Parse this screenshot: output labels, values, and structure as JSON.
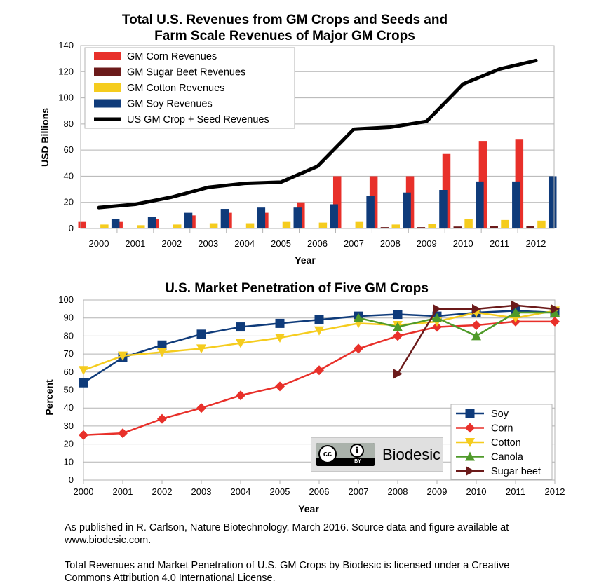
{
  "chart_data": [
    {
      "type": "bar",
      "title": "Total U.S. Revenues from GM Crops and Seeds and",
      "subtitle": "Farm Scale Revenues of Major GM Crops",
      "xlabel": "Year",
      "ylabel": "USD Billions",
      "ylim": [
        0,
        140
      ],
      "yticks": [
        "0",
        "20",
        "40",
        "60",
        "80",
        "100",
        "120",
        "140"
      ],
      "grid": true,
      "legend_position": "top-left",
      "categories": [
        "2000",
        "2001",
        "2002",
        "2003",
        "2004",
        "2005",
        "2006",
        "2007",
        "2008",
        "2009",
        "2010",
        "2011",
        "2012"
      ],
      "series": [
        {
          "name": "GM Corn Revenues",
          "kind": "bar",
          "color": "#e8302a",
          "values": [
            5,
            5,
            7,
            10,
            12,
            12,
            20,
            40,
            40,
            40,
            57,
            67,
            68
          ]
        },
        {
          "name": "GM Sugar Beet Revenues",
          "kind": "bar",
          "color": "#6b1a1a",
          "values": [
            0,
            0,
            0,
            0,
            0,
            0,
            0,
            0,
            1,
            1,
            1.5,
            2,
            2
          ]
        },
        {
          "name": "GM Cotton Revenues",
          "kind": "bar",
          "color": "#f5cc1e",
          "values": [
            3,
            2.5,
            3,
            4,
            4,
            5,
            4.5,
            5,
            3,
            3.5,
            7,
            6.5,
            6
          ]
        },
        {
          "name": "GM Soy Revenues",
          "kind": "bar",
          "color": "#0f3b7a",
          "values": [
            7,
            9,
            12,
            15,
            16,
            16,
            18.5,
            25,
            27.5,
            29.5,
            36,
            36,
            40
          ]
        },
        {
          "name": "US GM Crop + Seed Revenues",
          "kind": "line",
          "color": "#000000",
          "values": [
            16,
            18.5,
            24,
            31.5,
            34.5,
            35.5,
            47.5,
            76,
            77.5,
            82,
            110.5,
            122,
            128.5
          ]
        }
      ]
    },
    {
      "type": "line",
      "title": "U.S. Market Penetration of Five GM Crops",
      "xlabel": "Year",
      "ylabel": "Percent",
      "ylim": [
        0,
        100
      ],
      "yticks": [
        "0",
        "10",
        "20",
        "30",
        "40",
        "50",
        "60",
        "70",
        "80",
        "90",
        "100"
      ],
      "grid": true,
      "legend_position": "bottom-right",
      "x": [
        "2000",
        "2001",
        "2002",
        "2003",
        "2004",
        "2005",
        "2006",
        "2007",
        "2008",
        "2009",
        "2010",
        "2011",
        "2012"
      ],
      "series": [
        {
          "name": "Soy",
          "color": "#0f3b7a",
          "marker": "square",
          "values": [
            54,
            68,
            75,
            81,
            85,
            87,
            89,
            91,
            92,
            91,
            93,
            94,
            93
          ]
        },
        {
          "name": "Corn",
          "color": "#e8302a",
          "marker": "diamond",
          "values": [
            25,
            26,
            34,
            40,
            47,
            52,
            61,
            73,
            80,
            85,
            86,
            88,
            88
          ]
        },
        {
          "name": "Cotton",
          "color": "#f5cc1e",
          "marker": "triangle-down",
          "values": [
            61,
            69,
            71,
            73,
            76,
            79,
            83,
            87,
            86,
            88,
            93,
            90,
            94
          ]
        },
        {
          "name": "Canola",
          "color": "#4f9a2a",
          "marker": "triangle-up",
          "values": [
            null,
            null,
            null,
            null,
            null,
            null,
            null,
            90,
            85,
            90,
            80,
            93,
            93
          ]
        },
        {
          "name": "Sugar beet",
          "color": "#6b1a1a",
          "marker": "triangle-right",
          "values": [
            null,
            null,
            null,
            null,
            null,
            null,
            null,
            null,
            59,
            95,
            95,
            97,
            95
          ]
        }
      ]
    }
  ],
  "badge": {
    "by_label": "BY",
    "name": "Biodesic",
    "cc_text": "cc",
    "by_icon": "i"
  },
  "caption": {
    "line1": "As published in R. Carlson, Nature Biotechnology, March 2016. Source data and figure available at",
    "line2": "www.biodesic.com.",
    "line3": "Total Revenues and Market Penetration of U.S. GM Crops by Biodesic is licensed under a Creative",
    "line4": "Commons Attribution 4.0 International License."
  }
}
